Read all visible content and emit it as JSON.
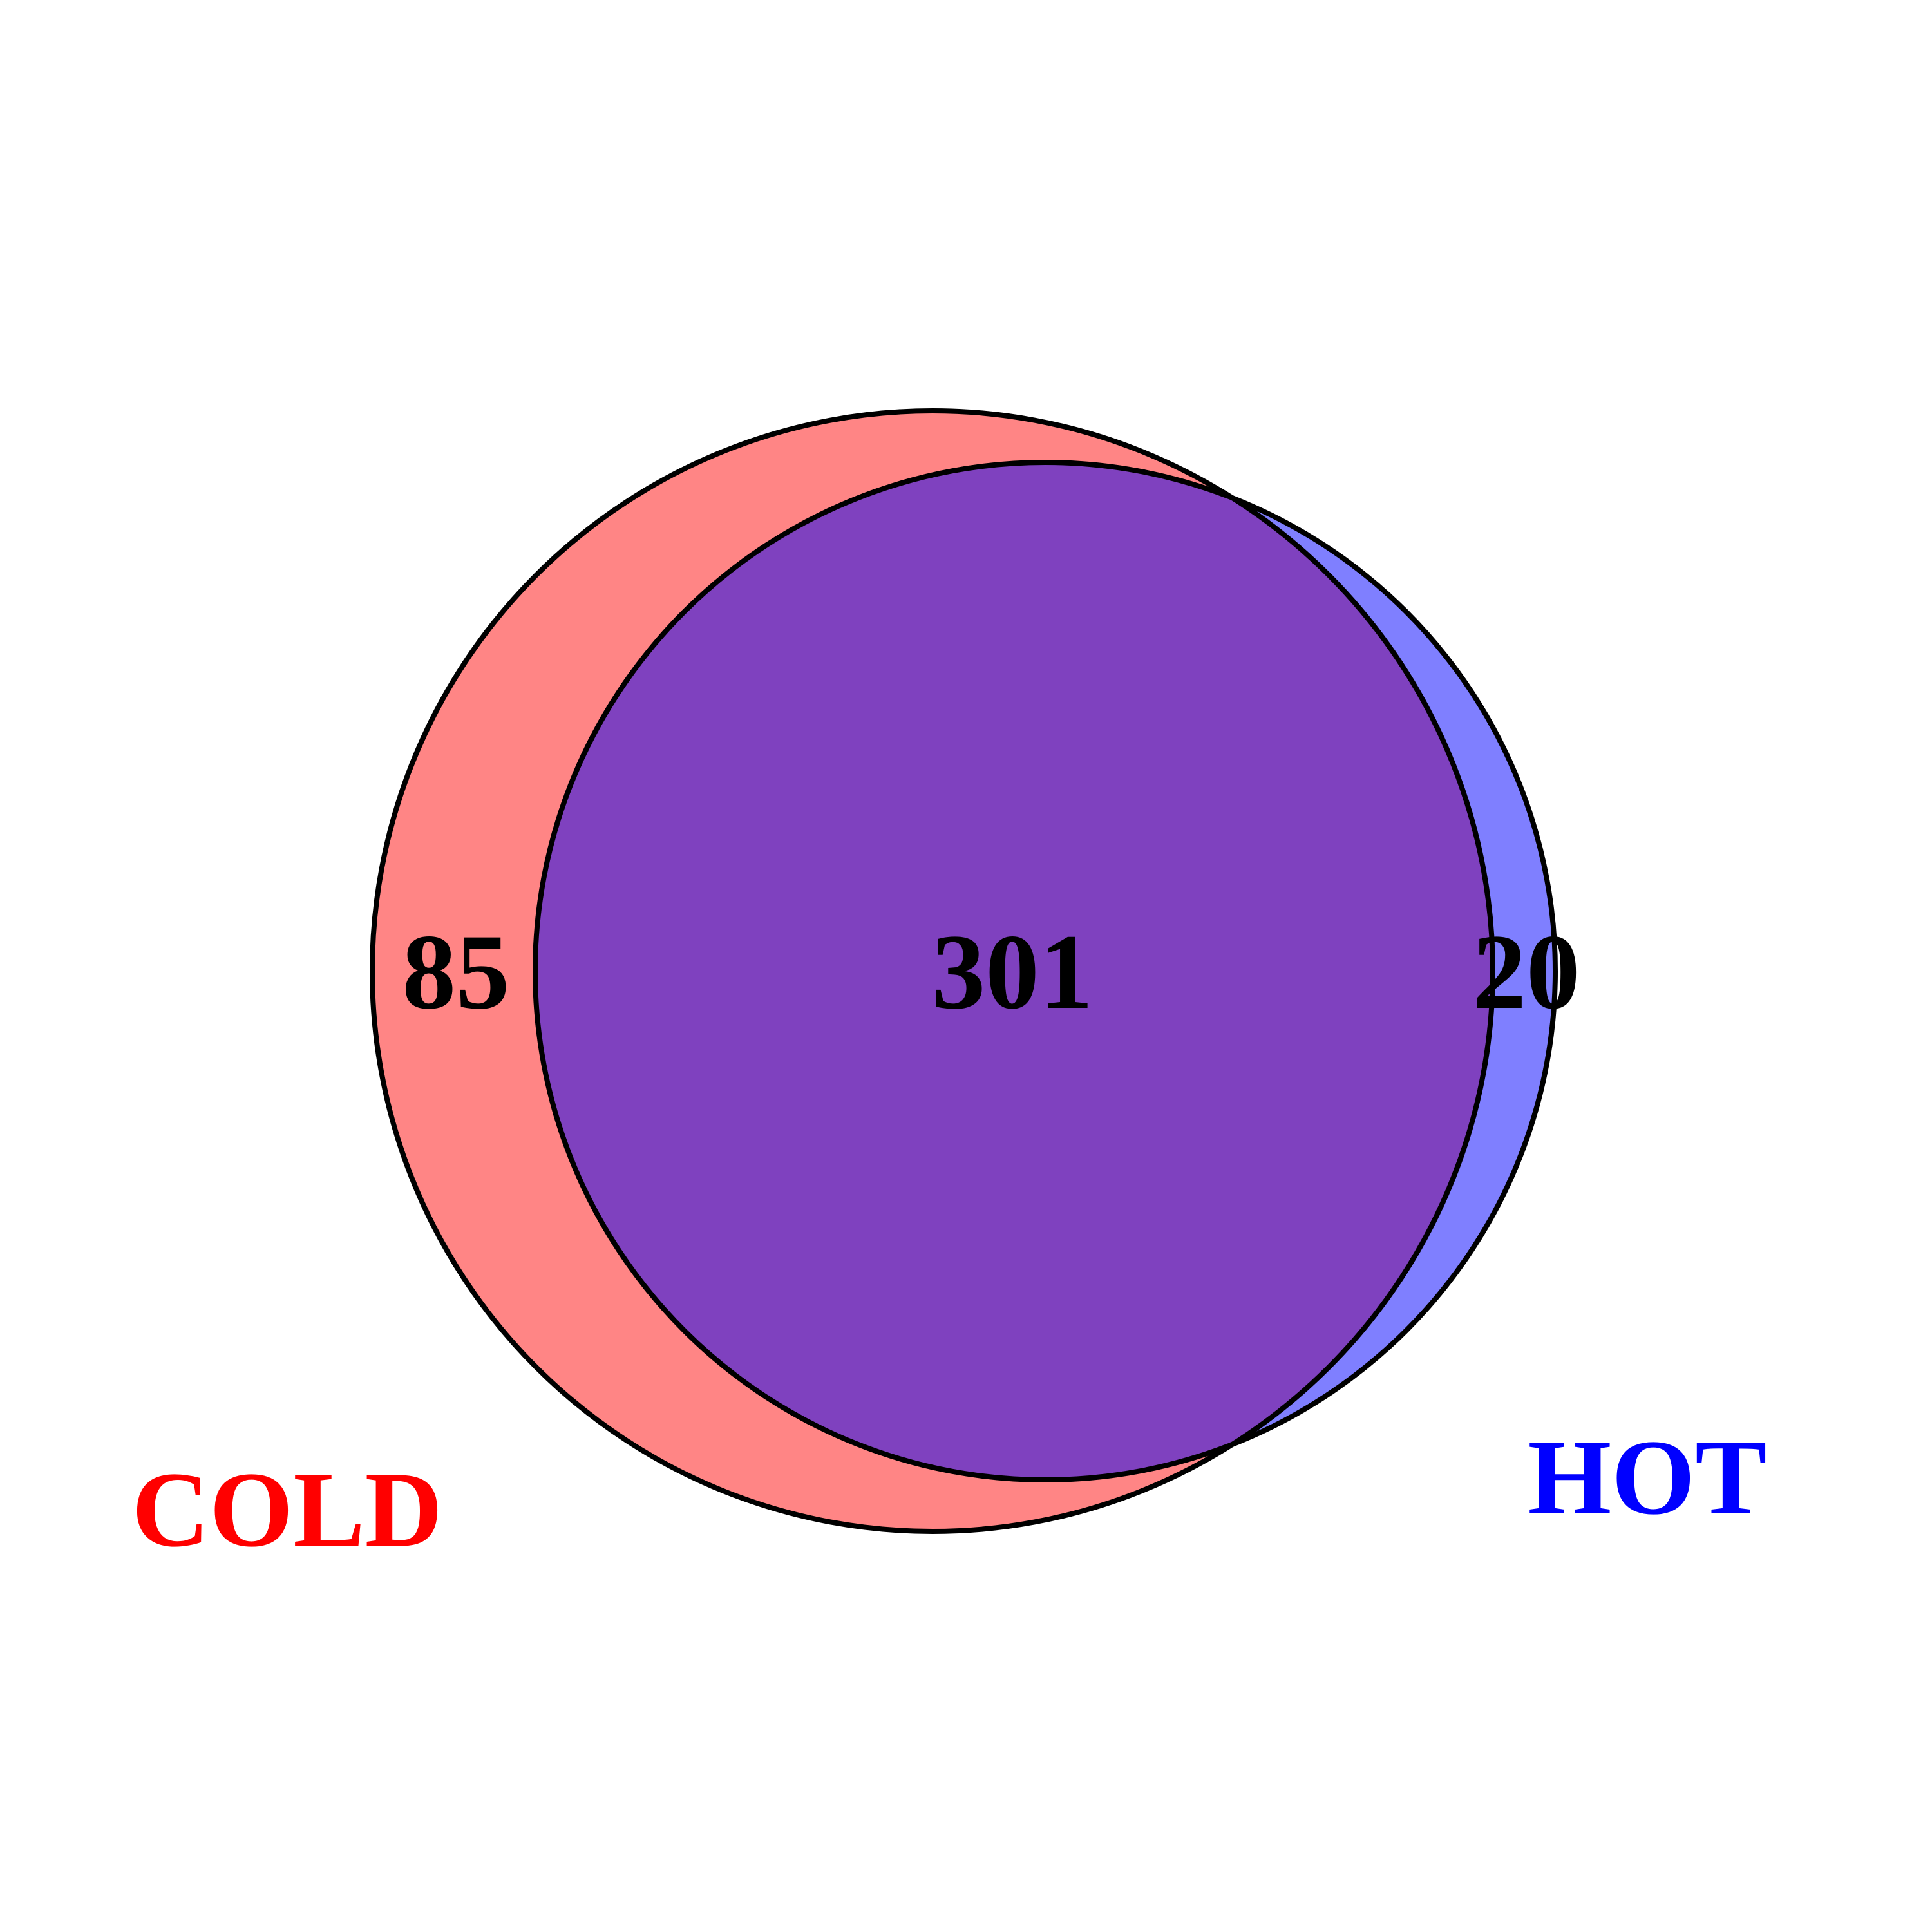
{
  "venn": {
    "sets": [
      {
        "key": "cold",
        "label": "COLD",
        "color": "#FF0000",
        "fill": "#FF0000"
      },
      {
        "key": "hot",
        "label": "HOT",
        "color": "#0000FF",
        "fill": "#0000FF"
      }
    ],
    "regions": {
      "cold_only": "85",
      "both": "301",
      "hot_only": "20"
    },
    "overlap_color": "#7F41BF",
    "outline_color": "#000000"
  }
}
